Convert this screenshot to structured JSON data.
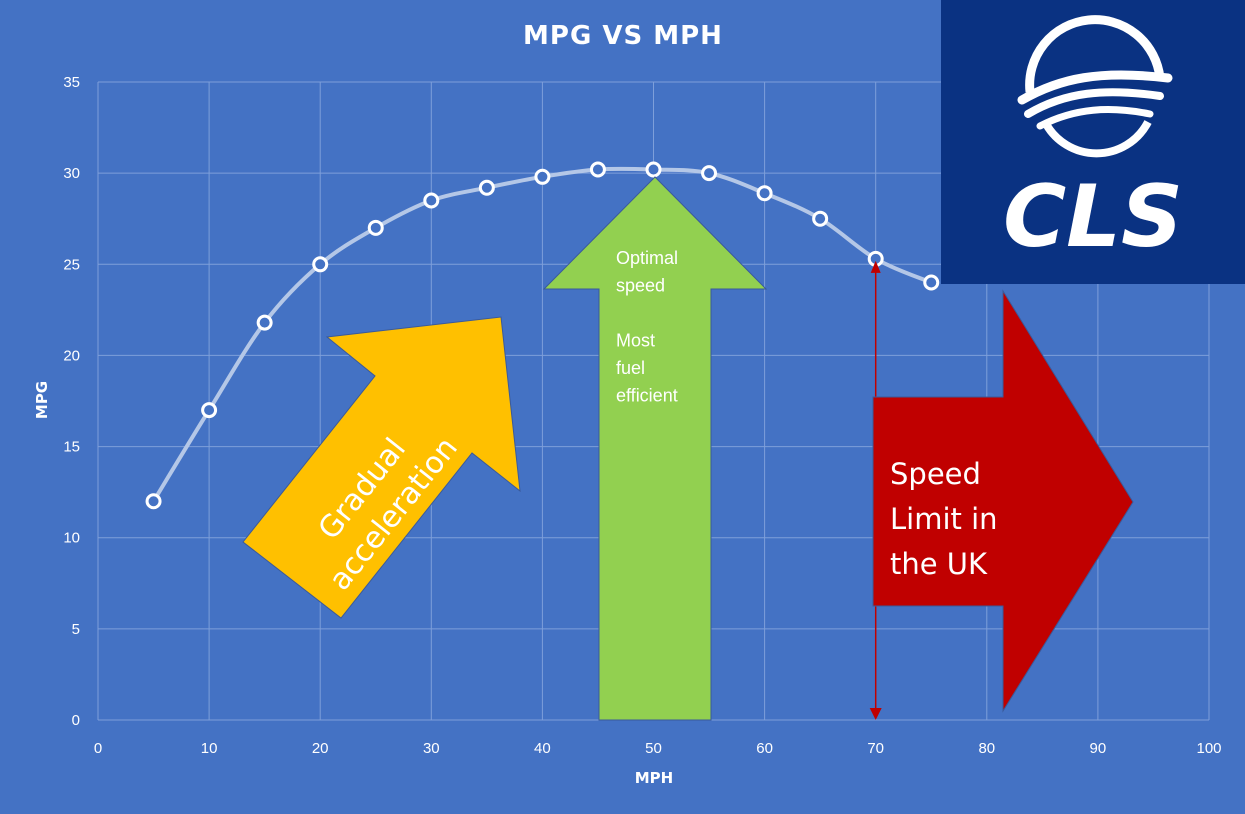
{
  "chart_data": {
    "type": "line",
    "title": "MPG VS MPH",
    "xlabel": "MPH",
    "ylabel": "MPG",
    "xlim": [
      0,
      100
    ],
    "ylim": [
      0,
      35
    ],
    "x_ticks": [
      0,
      10,
      20,
      30,
      40,
      50,
      60,
      70,
      80,
      90,
      100
    ],
    "y_ticks": [
      0,
      5,
      10,
      15,
      20,
      25,
      30,
      35
    ],
    "grid": true,
    "series": [
      {
        "x": [
          5,
          10,
          15,
          20,
          25,
          30,
          35,
          40,
          45,
          50,
          55,
          60,
          65,
          70,
          75
        ],
        "y": [
          12,
          17,
          21.8,
          25,
          27,
          28.5,
          29.2,
          29.8,
          30.2,
          30.2,
          30,
          28.9,
          27.5,
          25.3,
          24
        ]
      }
    ],
    "annotations": {
      "gradual": [
        "Gradual",
        "acceleration"
      ],
      "optimal": [
        "Optimal",
        "speed",
        "",
        "Most",
        "fuel",
        "efficient"
      ],
      "speed_limit": [
        "Speed",
        "Limit in",
        "the UK"
      ],
      "speed_limit_x": 70
    }
  },
  "logo": {
    "text": "CLS",
    "background": "#0a3282"
  },
  "colors": {
    "background": "#4472c4",
    "grid": "#7e9fda",
    "line": "#b4c7e7",
    "marker_fill": "#4472c4",
    "marker_stroke": "#ffffff",
    "arrow_yellow": "#ffc000",
    "arrow_green": "#92d050",
    "arrow_red": "#c00000",
    "limit_line": "#c00000"
  }
}
